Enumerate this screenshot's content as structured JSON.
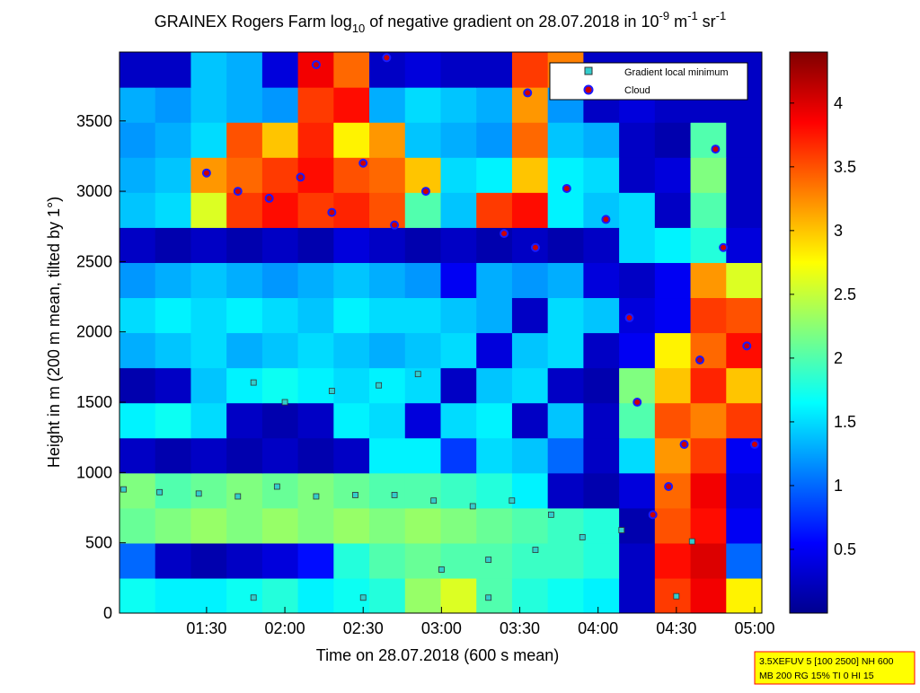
{
  "chart_data": {
    "type": "heatmap",
    "title": [
      "GRAINEX Rogers Farm log",
      "10",
      " of negative gradient on 28.07.2018 in 10",
      "-9",
      " m",
      "-1",
      " sr",
      "-1"
    ],
    "xlabel": "Time on 28.07.2018 (600 s mean)",
    "ylabel": "Height in m (200 m mean, tilted by 1°)",
    "xlim": [
      0.944,
      5.046
    ],
    "xticks": [
      {
        "value": 1.5,
        "label": "01:30"
      },
      {
        "value": 2,
        "label": "02:00"
      },
      {
        "value": 2.5,
        "label": "02:30"
      },
      {
        "value": 3,
        "label": "03:00"
      },
      {
        "value": 3.5,
        "label": "03:30"
      },
      {
        "value": 4,
        "label": "04:00"
      },
      {
        "value": 4.5,
        "label": "04:30"
      },
      {
        "value": 5,
        "label": "05:00"
      }
    ],
    "ylim": [
      0,
      3990
    ],
    "yticks": [
      0,
      500,
      1000,
      1500,
      2000,
      2500,
      3000,
      3500
    ],
    "colormap": "jet",
    "clim": [
      0,
      4.4
    ],
    "cticks": [
      0.5,
      1,
      1.5,
      2,
      2.5,
      3,
      3.5,
      4
    ],
    "z": [
      [
        1.7,
        1.6,
        1.6,
        1.7,
        1.8,
        1.6,
        1.7,
        1.8,
        2.3,
        2.6,
        2.0,
        1.8,
        1.7,
        1.6,
        0.3,
        3.6,
        3.9,
        2.8
      ],
      [
        1.0,
        0.3,
        0.2,
        0.3,
        0.4,
        0.6,
        1.8,
        2.0,
        2.1,
        2.0,
        2.0,
        1.9,
        1.9,
        1.8,
        0.3,
        3.8,
        4.0,
        1.0
      ],
      [
        2.1,
        2.2,
        2.3,
        2.2,
        2.3,
        2.2,
        2.3,
        2.2,
        2.3,
        2.2,
        2.1,
        2.0,
        1.9,
        1.8,
        0.2,
        3.5,
        3.8,
        0.5
      ],
      [
        2.2,
        2.0,
        2.1,
        2.2,
        2.1,
        2.2,
        2.1,
        2.0,
        2.0,
        1.9,
        1.8,
        1.6,
        0.3,
        0.2,
        0.4,
        3.4,
        3.9,
        0.4
      ],
      [
        0.3,
        0.2,
        0.3,
        0.2,
        0.3,
        0.2,
        0.3,
        1.6,
        1.6,
        0.8,
        1.5,
        1.4,
        1.0,
        0.3,
        1.5,
        3.2,
        3.6,
        0.5
      ],
      [
        1.6,
        1.7,
        1.5,
        0.3,
        0.2,
        0.3,
        1.6,
        1.5,
        0.4,
        1.5,
        1.6,
        0.3,
        1.4,
        0.3,
        2.0,
        3.5,
        3.3,
        3.6
      ],
      [
        0.2,
        0.3,
        1.4,
        1.6,
        1.7,
        1.6,
        1.5,
        1.6,
        1.5,
        0.3,
        1.4,
        1.5,
        0.3,
        0.2,
        2.2,
        3.0,
        3.7,
        3.0
      ],
      [
        1.3,
        1.4,
        1.5,
        1.3,
        1.4,
        1.5,
        1.4,
        1.3,
        1.4,
        1.5,
        0.4,
        1.4,
        1.5,
        0.3,
        0.5,
        2.8,
        3.4,
        3.8
      ],
      [
        1.5,
        1.6,
        1.5,
        1.6,
        1.5,
        1.4,
        1.6,
        1.5,
        1.5,
        1.4,
        1.3,
        0.3,
        1.5,
        1.4,
        0.4,
        0.5,
        3.6,
        3.5
      ],
      [
        1.2,
        1.3,
        1.4,
        1.3,
        1.2,
        1.3,
        1.4,
        1.3,
        1.2,
        0.5,
        1.3,
        1.2,
        1.3,
        0.4,
        0.3,
        0.5,
        3.2,
        2.6
      ],
      [
        0.3,
        0.2,
        0.3,
        0.2,
        0.3,
        0.2,
        0.4,
        0.3,
        0.2,
        0.3,
        0.2,
        0.3,
        0.2,
        0.3,
        1.5,
        1.6,
        1.8,
        0.4
      ],
      [
        1.4,
        1.5,
        2.6,
        3.6,
        3.8,
        3.6,
        3.7,
        3.5,
        2.0,
        1.4,
        3.6,
        3.8,
        1.6,
        1.4,
        1.5,
        0.3,
        2.0,
        0.3
      ],
      [
        1.3,
        1.4,
        3.2,
        3.4,
        3.6,
        3.8,
        3.5,
        3.4,
        3.0,
        1.5,
        1.6,
        3.0,
        1.6,
        1.5,
        0.3,
        0.4,
        2.2,
        0.3
      ],
      [
        1.2,
        1.3,
        1.5,
        3.5,
        3.0,
        3.7,
        2.8,
        3.2,
        1.4,
        1.3,
        1.2,
        3.4,
        1.4,
        1.3,
        0.3,
        0.2,
        2.0,
        0.3
      ],
      [
        1.3,
        1.2,
        1.4,
        1.3,
        1.2,
        3.6,
        3.8,
        1.3,
        1.5,
        1.4,
        1.3,
        3.2,
        1.2,
        0.3,
        0.4,
        0.3,
        0.3,
        0.3
      ],
      [
        0.3,
        0.3,
        1.4,
        1.3,
        0.4,
        3.9,
        3.4,
        0.3,
        0.4,
        0.3,
        0.3,
        3.6,
        3.3,
        0.3,
        0.3,
        0.3,
        0.3,
        0.3
      ]
    ],
    "legend": "upper right",
    "series": [
      {
        "name": "Gradient local minimum",
        "color": "#33cccc",
        "x": [
          0.97,
          1.2,
          1.45,
          1.7,
          1.95,
          2.2,
          2.45,
          2.7,
          2.95,
          3.2,
          3.45,
          3.7,
          1.8,
          2.0,
          2.3,
          2.6,
          2.85,
          3.0,
          3.3,
          3.6,
          3.9,
          4.15,
          1.8,
          2.5,
          3.3,
          4.6,
          4.5
        ],
        "values": [
          880,
          860,
          850,
          830,
          900,
          830,
          840,
          840,
          800,
          760,
          800,
          700,
          1640,
          1500,
          1580,
          1620,
          1700,
          310,
          380,
          450,
          540,
          590,
          110,
          110,
          110,
          510,
          120
        ]
      },
      {
        "name": "Cloud",
        "color": "#cc0000",
        "x": [
          1.5,
          1.7,
          1.9,
          2.1,
          2.3,
          2.5,
          2.7,
          2.9,
          3.4,
          3.6,
          3.55,
          3.8,
          4.05,
          4.2,
          4.25,
          4.35,
          4.45,
          4.55,
          4.65,
          4.75,
          4.8,
          4.95,
          5.0,
          2.2,
          2.65
        ],
        "values": [
          3130,
          3000,
          2950,
          3100,
          2850,
          3200,
          2760,
          3000,
          2700,
          2600,
          3700,
          3020,
          2800,
          2100,
          1500,
          700,
          900,
          1200,
          1800,
          3300,
          2600,
          1900,
          1200,
          3900,
          3950
        ]
      }
    ],
    "info": [
      "3.5XEFUV 5 [100 2500] NH 600",
      "MB 200 RG 15% TI 0 HI 15"
    ]
  }
}
